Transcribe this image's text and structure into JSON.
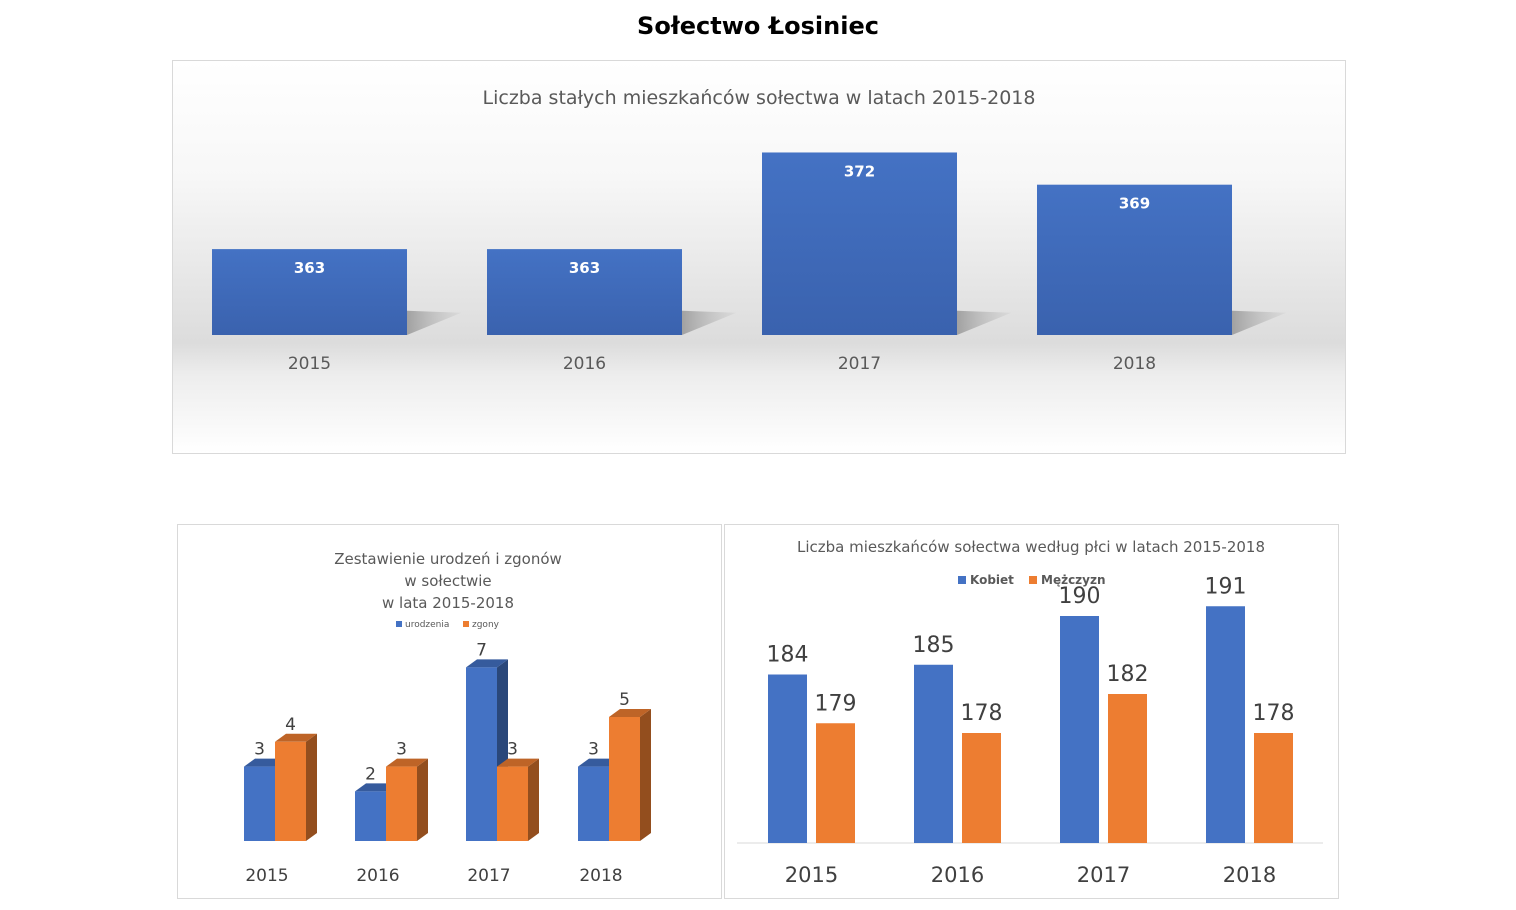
{
  "page": {
    "title": "Sołectwo Łosiniec"
  },
  "chart_data": [
    {
      "id": "residents",
      "type": "bar",
      "title": "Liczba stałych mieszkańców sołectwa w latach 2015-2018",
      "categories": [
        "2015",
        "2016",
        "2017",
        "2018"
      ],
      "values": [
        363,
        363,
        372,
        369
      ],
      "xlabel": "",
      "ylabel": "",
      "ylim": [
        355,
        374
      ],
      "grid": false,
      "legend": "none",
      "color": "#4472C4"
    },
    {
      "id": "births-deaths",
      "type": "bar",
      "title_lines": [
        "Zestawienie urodzeń i zgonów",
        "w sołectwie",
        " w lata 2015-2018"
      ],
      "categories": [
        "2015",
        "2016",
        "2017",
        "2018"
      ],
      "series": [
        {
          "name": "urodzenia",
          "values": [
            3,
            2,
            7,
            3
          ],
          "color": "#4472C4"
        },
        {
          "name": "zgony",
          "values": [
            4,
            3,
            3,
            5
          ],
          "color": "#ED7D31"
        }
      ],
      "xlabel": "",
      "ylabel": "",
      "ylim": [
        0,
        7
      ],
      "grid": false,
      "legend": "top"
    },
    {
      "id": "by-gender",
      "type": "bar",
      "title": "Liczba mieszkańców sołectwa według płci w latach 2015-2018",
      "categories": [
        "2015",
        "2016",
        "2017",
        "2018"
      ],
      "series": [
        {
          "name": "Kobiet",
          "values": [
            184,
            185,
            190,
            191
          ],
          "color": "#4472C4"
        },
        {
          "name": "Mężczyzn",
          "values": [
            179,
            178,
            182,
            178
          ],
          "color": "#ED7D31"
        }
      ],
      "xlabel": "",
      "ylabel": "",
      "ylim": [
        170,
        192
      ],
      "grid": false,
      "legend": "top"
    }
  ]
}
